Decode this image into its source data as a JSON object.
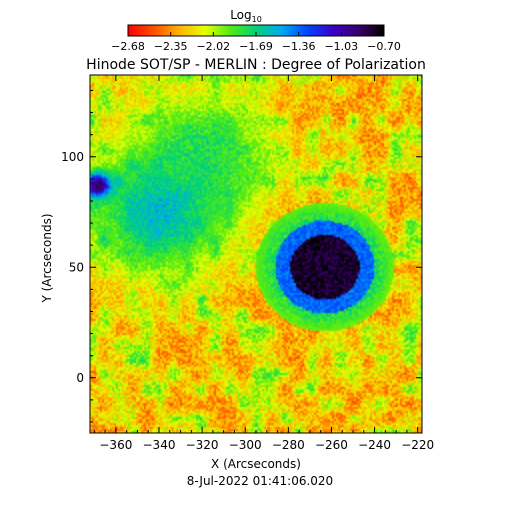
{
  "chart_data": {
    "type": "heatmap",
    "title": "Hinode SOT/SP - MERLIN : Degree of Polarization",
    "timestamp": "8-Jul-2022 01:41:06.020",
    "xlabel": "X (Arcseconds)",
    "ylabel": "Y (Arcseconds)",
    "xlim": [
      -372,
      -218
    ],
    "ylim": [
      -25,
      137
    ],
    "x_ticks": [
      -360,
      -340,
      -320,
      -300,
      -280,
      -260,
      -240,
      -220
    ],
    "x_tick_labels": [
      "−360",
      "−340",
      "−320",
      "−300",
      "−280",
      "−260",
      "−240",
      "−220"
    ],
    "y_ticks": [
      0,
      50,
      100
    ],
    "y_tick_labels": [
      "0",
      "50",
      "100"
    ],
    "colorbar": {
      "label_base": "Log",
      "label_sub": "10",
      "colormap": "rainbow (red to black)",
      "range": [
        -2.68,
        -0.7
      ],
      "tick_values": [
        -2.68,
        -2.35,
        -2.02,
        -1.69,
        -1.36,
        -1.03,
        -0.7
      ],
      "tick_labels": [
        "−2.68",
        "−2.35",
        "−2.02",
        "−1.69",
        "−1.36",
        "−1.03",
        "−0.70"
      ]
    },
    "features": [
      {
        "kind": "sunspot",
        "x": -263,
        "y": 50,
        "value": -0.8
      },
      {
        "kind": "pore",
        "x": -368,
        "y": 87,
        "value": -1.0
      },
      {
        "kind": "plage-network",
        "x": -340,
        "y": 75,
        "value": -1.7
      },
      {
        "kind": "plage-network",
        "x": -320,
        "y": 100,
        "value": -1.9
      }
    ]
  }
}
